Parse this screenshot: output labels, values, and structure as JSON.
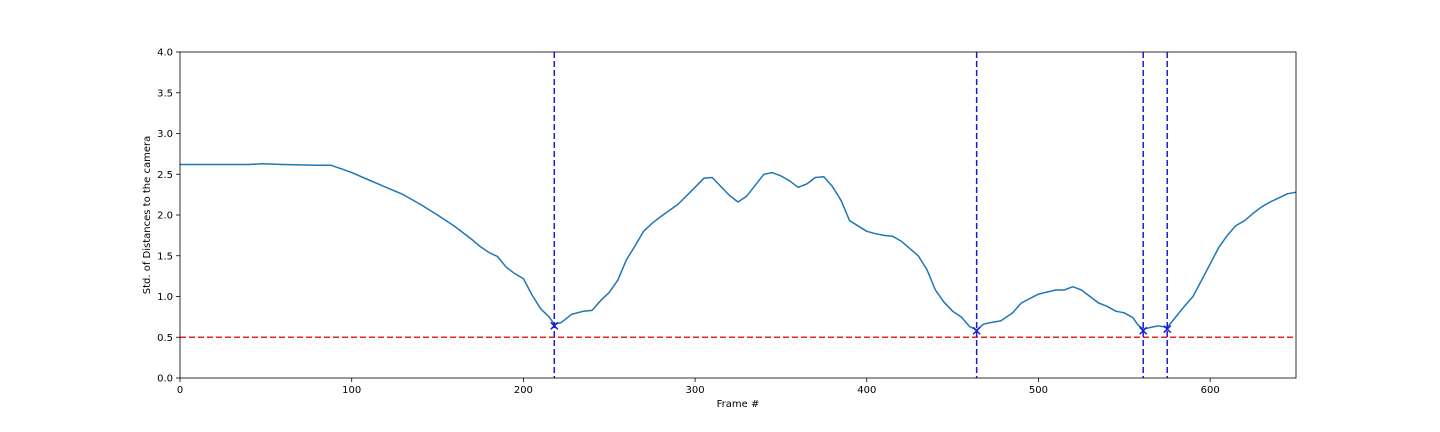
{
  "chart_data": {
    "type": "line",
    "xlabel": "Frame #",
    "ylabel": "Std. of Distances to the camera",
    "xlim": [
      0,
      650
    ],
    "ylim": [
      0,
      4.0
    ],
    "xticks": [
      0,
      100,
      200,
      300,
      400,
      500,
      600
    ],
    "yticks": [
      0.0,
      0.5,
      1.0,
      1.5,
      2.0,
      2.5,
      3.0,
      3.5,
      4.0
    ],
    "ytick_labels": [
      "0.0",
      "0.5",
      "1.0",
      "1.5",
      "2.0",
      "2.5",
      "3.0",
      "3.5",
      "4.0"
    ],
    "grid": false,
    "line_color": "#1f77b4",
    "threshold": {
      "y": 0.5,
      "color": "#e8251e"
    },
    "vlines": {
      "x": [
        218,
        464,
        561,
        575
      ],
      "color": "#1a1ad8"
    },
    "markers": {
      "color": "#1a1ad8",
      "points": [
        [
          218,
          0.64
        ],
        [
          464,
          0.58
        ],
        [
          561,
          0.58
        ],
        [
          575,
          0.6
        ]
      ]
    },
    "series": [
      {
        "x": [
          0,
          20,
          40,
          48,
          60,
          80,
          88,
          95,
          100,
          110,
          120,
          130,
          140,
          150,
          160,
          170,
          175,
          180,
          185,
          190,
          195,
          200,
          205,
          210,
          215,
          218,
          222,
          228,
          235,
          240,
          245,
          250,
          255,
          260,
          265,
          270,
          275,
          280,
          290,
          300,
          305,
          310,
          320,
          325,
          330,
          340,
          345,
          350,
          355,
          360,
          365,
          370,
          375,
          380,
          385,
          390,
          400,
          405,
          410,
          415,
          420,
          430,
          435,
          440,
          445,
          450,
          455,
          460,
          464,
          468,
          472,
          478,
          485,
          490,
          500,
          510,
          515,
          520,
          525,
          530,
          535,
          540,
          545,
          550,
          555,
          558,
          561,
          565,
          570,
          575,
          580,
          585,
          590,
          595,
          600,
          605,
          610,
          615,
          620,
          625,
          630,
          635,
          640,
          645,
          650
        ],
        "y": [
          2.62,
          2.62,
          2.62,
          2.63,
          2.62,
          2.61,
          2.61,
          2.56,
          2.52,
          2.43,
          2.34,
          2.25,
          2.13,
          2.0,
          1.86,
          1.7,
          1.61,
          1.54,
          1.49,
          1.36,
          1.28,
          1.22,
          1.02,
          0.85,
          0.75,
          0.66,
          0.68,
          0.78,
          0.82,
          0.83,
          0.95,
          1.05,
          1.2,
          1.45,
          1.62,
          1.8,
          1.9,
          1.98,
          2.13,
          2.34,
          2.45,
          2.46,
          2.24,
          2.16,
          2.23,
          2.5,
          2.52,
          2.48,
          2.42,
          2.34,
          2.38,
          2.46,
          2.47,
          2.35,
          2.18,
          1.93,
          1.8,
          1.77,
          1.75,
          1.74,
          1.68,
          1.5,
          1.33,
          1.08,
          0.93,
          0.82,
          0.75,
          0.63,
          0.59,
          0.66,
          0.68,
          0.7,
          0.8,
          0.92,
          1.03,
          1.08,
          1.08,
          1.12,
          1.08,
          1.0,
          0.92,
          0.88,
          0.82,
          0.8,
          0.74,
          0.65,
          0.6,
          0.62,
          0.64,
          0.62,
          0.75,
          0.88,
          1.0,
          1.2,
          1.4,
          1.6,
          1.75,
          1.87,
          1.93,
          2.02,
          2.1,
          2.16,
          2.21,
          2.26,
          2.28
        ]
      }
    ]
  }
}
